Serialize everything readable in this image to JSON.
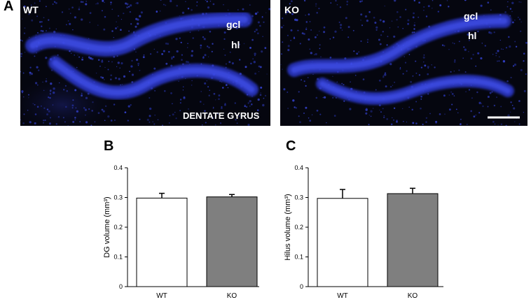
{
  "panel_letters": {
    "a": "A",
    "b": "B",
    "c": "C"
  },
  "micrographs": {
    "wt": {
      "genotype": "WT",
      "region_gcl": "gcl",
      "region_hl": "hl",
      "region_title": "DENTATE GYRUS",
      "stain_color": "#2a3bd8"
    },
    "ko": {
      "genotype": "KO",
      "region_gcl": "gcl",
      "region_hl": "hl",
      "stain_color": "#2a3bd8"
    }
  },
  "chart_data": [
    {
      "type": "bar",
      "panel": "B",
      "categories": [
        "WT",
        "KO"
      ],
      "values": [
        0.298,
        0.302
      ],
      "error": [
        0.016,
        0.008
      ],
      "bar_colors": [
        "#ffffff",
        "#7f7f7f"
      ],
      "ylabel": "DG volume (mm³)",
      "ylim": [
        0,
        0.4
      ],
      "yticks": [
        "0",
        "0.1",
        "0.2",
        "0.3",
        "0.4"
      ],
      "grid": false
    },
    {
      "type": "bar",
      "panel": "C",
      "categories": [
        "WT",
        "KO"
      ],
      "values": [
        0.297,
        0.313
      ],
      "error": [
        0.03,
        0.018
      ],
      "bar_colors": [
        "#ffffff",
        "#7f7f7f"
      ],
      "ylabel": "Hilus volume (mm³)",
      "ylim": [
        0,
        0.4
      ],
      "yticks": [
        "0",
        "0.1",
        "0.2",
        "0.3",
        "0.4"
      ],
      "grid": false
    }
  ]
}
